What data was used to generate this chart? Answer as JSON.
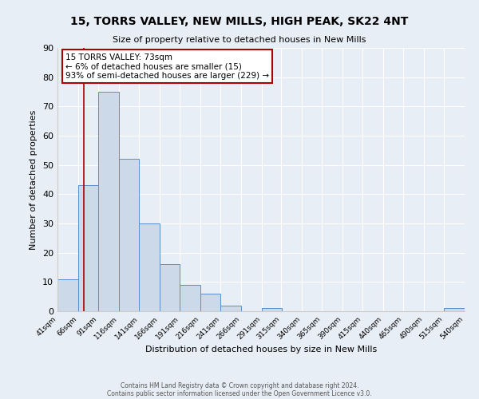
{
  "title": "15, TORRS VALLEY, NEW MILLS, HIGH PEAK, SK22 4NT",
  "subtitle": "Size of property relative to detached houses in New Mills",
  "xlabel": "Distribution of detached houses by size in New Mills",
  "ylabel": "Number of detached properties",
  "bar_color": "#ccd9e8",
  "bar_edge_color": "#5b8fc9",
  "background_color": "#e8eef5",
  "bins": [
    41,
    66,
    91,
    116,
    141,
    166,
    191,
    216,
    241,
    266,
    291,
    315,
    340,
    365,
    390,
    415,
    440,
    465,
    490,
    515,
    540
  ],
  "counts": [
    11,
    43,
    75,
    52,
    30,
    16,
    9,
    6,
    2,
    0,
    1,
    0,
    0,
    0,
    0,
    0,
    0,
    0,
    0,
    1
  ],
  "ylim": [
    0,
    90
  ],
  "yticks": [
    0,
    10,
    20,
    30,
    40,
    50,
    60,
    70,
    80,
    90
  ],
  "xtick_labels": [
    "41sqm",
    "66sqm",
    "91sqm",
    "116sqm",
    "141sqm",
    "166sqm",
    "191sqm",
    "216sqm",
    "241sqm",
    "266sqm",
    "291sqm",
    "315sqm",
    "340sqm",
    "365sqm",
    "390sqm",
    "415sqm",
    "440sqm",
    "465sqm",
    "490sqm",
    "515sqm",
    "540sqm"
  ],
  "property_line_x": 73,
  "property_line_color": "#aa0000",
  "annotation_title": "15 TORRS VALLEY: 73sqm",
  "annotation_line1": "← 6% of detached houses are smaller (15)",
  "annotation_line2": "93% of semi-detached houses are larger (229) →",
  "annotation_box_color": "#ffffff",
  "annotation_box_edge": "#aa0000",
  "footer1": "Contains HM Land Registry data © Crown copyright and database right 2024.",
  "footer2": "Contains public sector information licensed under the Open Government Licence v3.0."
}
